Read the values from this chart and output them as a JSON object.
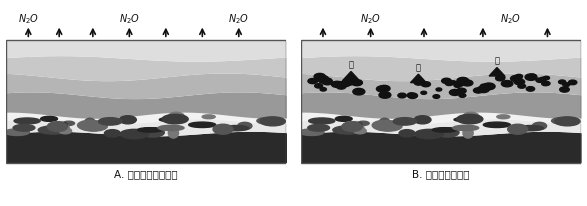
{
  "title_A": "A. 不施加某体的土壤",
  "title_B": "B. 施加某体的土壤",
  "coal_label": "某",
  "fig_width": 5.87,
  "fig_height": 2.07,
  "bg_color": "#ffffff",
  "coal_color": "#111111",
  "arrow_color": "#111111",
  "text_color": "#111111",
  "border_color": "#555555",
  "layer_top_light": "#d9d9d9",
  "layer_upper_mid": "#b8b8b8",
  "layer_mid": "#a0a0a0",
  "layer_lower_mid": "#888888",
  "layer_pebble_white": "#f2f2f2",
  "layer_bottom_dark": "#2a2a2a",
  "pebble_colors": [
    "#3a3a3a",
    "#555555",
    "#777777",
    "#222222",
    "#666666",
    "#444444"
  ]
}
